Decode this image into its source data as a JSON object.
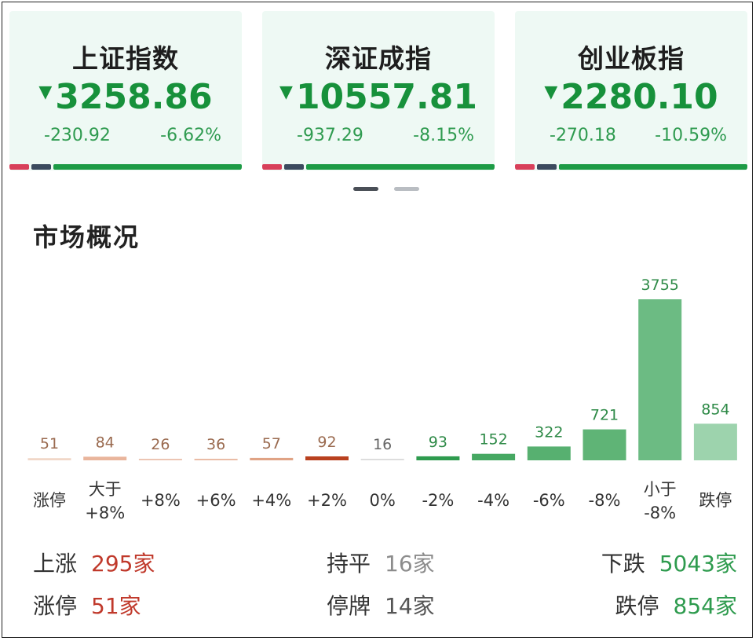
{
  "indices": [
    {
      "name": "上证指数",
      "arrow": "▼",
      "price": "3258.86",
      "change": "-230.92",
      "pct": "-6.62%"
    },
    {
      "name": "深证成指",
      "arrow": "▼",
      "price": "10557.81",
      "change": "-937.29",
      "pct": "-8.15%"
    },
    {
      "name": "创业板指",
      "arrow": "▼",
      "price": "2280.10",
      "change": "-270.18",
      "pct": "-10.59%"
    }
  ],
  "section_title": "市场概况",
  "colors": {
    "up": "#c0392b",
    "down": "#2e9b4e",
    "flat": "#8c8c8c",
    "accent_green": "#17913b",
    "card_bg": "#eef9f4"
  },
  "chart_data": {
    "type": "bar",
    "categories": [
      "涨停",
      "大于\n+8%",
      "+8%",
      "+6%",
      "+4%",
      "+2%",
      "0%",
      "-2%",
      "-4%",
      "-6%",
      "-8%",
      "小于\n-8%",
      "跌停"
    ],
    "values": [
      51,
      84,
      26,
      36,
      57,
      92,
      16,
      93,
      152,
      322,
      721,
      3755,
      854
    ],
    "bar_colors": [
      "#f1d7c8",
      "#e9b59c",
      "#ecc5b3",
      "#eabca6",
      "#e0a385",
      "#b9411f",
      "#dddddd",
      "#2e9b4e",
      "#46a862",
      "#57b070",
      "#5fb476",
      "#6cbb83",
      "#9dd3ad"
    ],
    "label_colors": [
      "#9a6a4f",
      "#9a6a4f",
      "#9a6a4f",
      "#9a6a4f",
      "#9a6a4f",
      "#9a6a4f",
      "#666666",
      "#2e8a47",
      "#2e8a47",
      "#2e8a47",
      "#2e8a47",
      "#2e8a47",
      "#2e8a47"
    ],
    "ylim": [
      0,
      3755
    ],
    "title": "",
    "xlabel": "",
    "ylabel": ""
  },
  "summary": {
    "up": {
      "label": "上涨",
      "value": "295家"
    },
    "limit_up": {
      "label": "涨停",
      "value": "51家"
    },
    "flat": {
      "label": "持平",
      "value": "16家"
    },
    "suspended": {
      "label": "停牌",
      "value": "14家"
    },
    "down": {
      "label": "下跌",
      "value": "5043家"
    },
    "limit_down": {
      "label": "跌停",
      "value": "854家"
    }
  }
}
